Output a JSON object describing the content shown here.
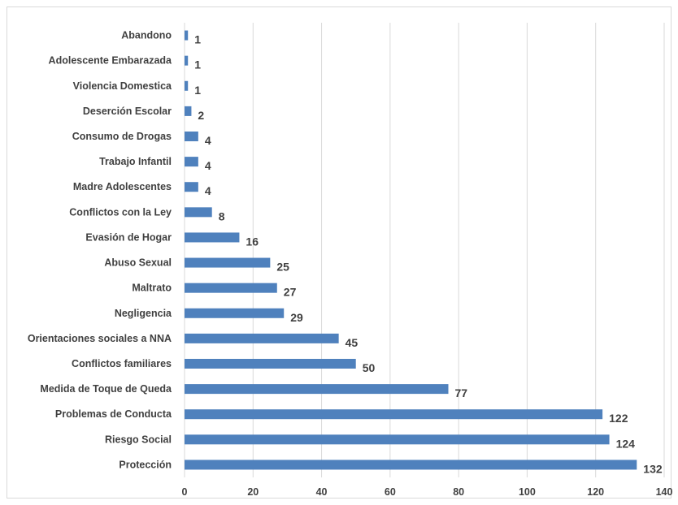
{
  "chart_data": {
    "type": "bar",
    "orientation": "horizontal",
    "categories": [
      "Abandono",
      "Adolescente Embarazada",
      "Violencia Domestica",
      "Deserción Escolar",
      "Consumo de Drogas",
      "Trabajo Infantil",
      "Madre Adolescentes",
      "Conflictos con la Ley",
      "Evasión de Hogar",
      "Abuso Sexual",
      "Maltrato",
      "Negligencia",
      "Orientaciones   sociales a NNA",
      "Conflictos familiares",
      "Medida de Toque de Queda",
      "Problemas de  Conducta",
      "Riesgo Social",
      "Protección"
    ],
    "values": [
      1,
      1,
      1,
      2,
      4,
      4,
      4,
      8,
      16,
      25,
      27,
      29,
      45,
      50,
      77,
      122,
      124,
      132
    ],
    "data_labels": [
      "1",
      "1",
      "1",
      "2",
      "4",
      "4",
      "4",
      "8",
      "16",
      "25",
      "27",
      "29",
      "45",
      "50",
      "77",
      "122",
      "124",
      "132"
    ],
    "xlim": [
      0,
      140
    ],
    "xticks": [
      "0",
      "20",
      "40",
      "60",
      "80",
      "100",
      "120",
      "140"
    ],
    "grid": true,
    "legend": "none",
    "bar_color": "#4f81bd",
    "grid_color": "#d9d9d9",
    "text_color": "#404040"
  }
}
